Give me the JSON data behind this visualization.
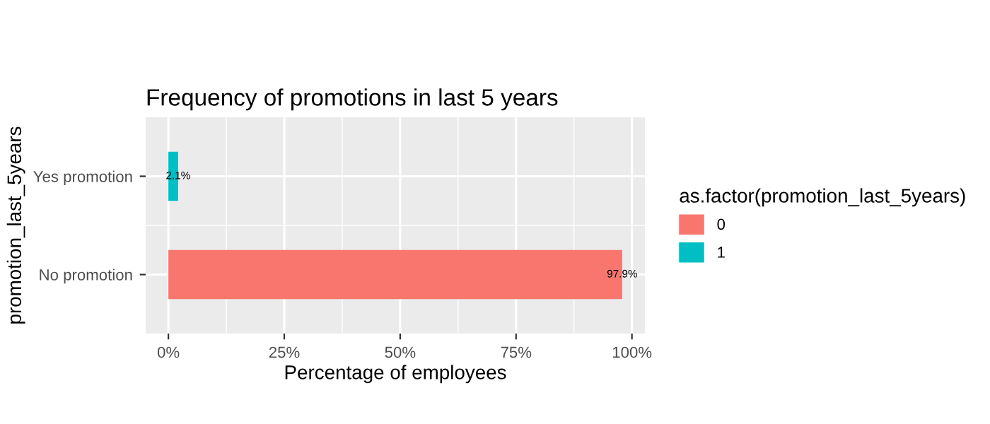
{
  "chart_data": {
    "type": "bar",
    "orientation": "horizontal",
    "title": "Frequency of promotions in last 5 years",
    "xlabel": "Percentage of employees",
    "ylabel": "promotion_last_5years",
    "legend_title": "as.factor(promotion_last_5years)",
    "categories": [
      "Yes promotion",
      "No promotion"
    ],
    "series": [
      {
        "name": "0",
        "color": "#f8766d",
        "values": [
          null,
          97.9
        ],
        "value_labels": [
          null,
          "97.9%"
        ]
      },
      {
        "name": "1",
        "color": "#00bfc4",
        "values": [
          2.1,
          null
        ],
        "value_labels": [
          "2.1%",
          null
        ]
      }
    ],
    "xlim": [
      -4.9,
      102.8
    ],
    "xticks": [
      {
        "value": 0,
        "label": "0%"
      },
      {
        "value": 25,
        "label": "25%"
      },
      {
        "value": 50,
        "label": "50%"
      },
      {
        "value": 75,
        "label": "75%"
      },
      {
        "value": 100,
        "label": "100%"
      }
    ],
    "grid": true,
    "legend": "right"
  }
}
